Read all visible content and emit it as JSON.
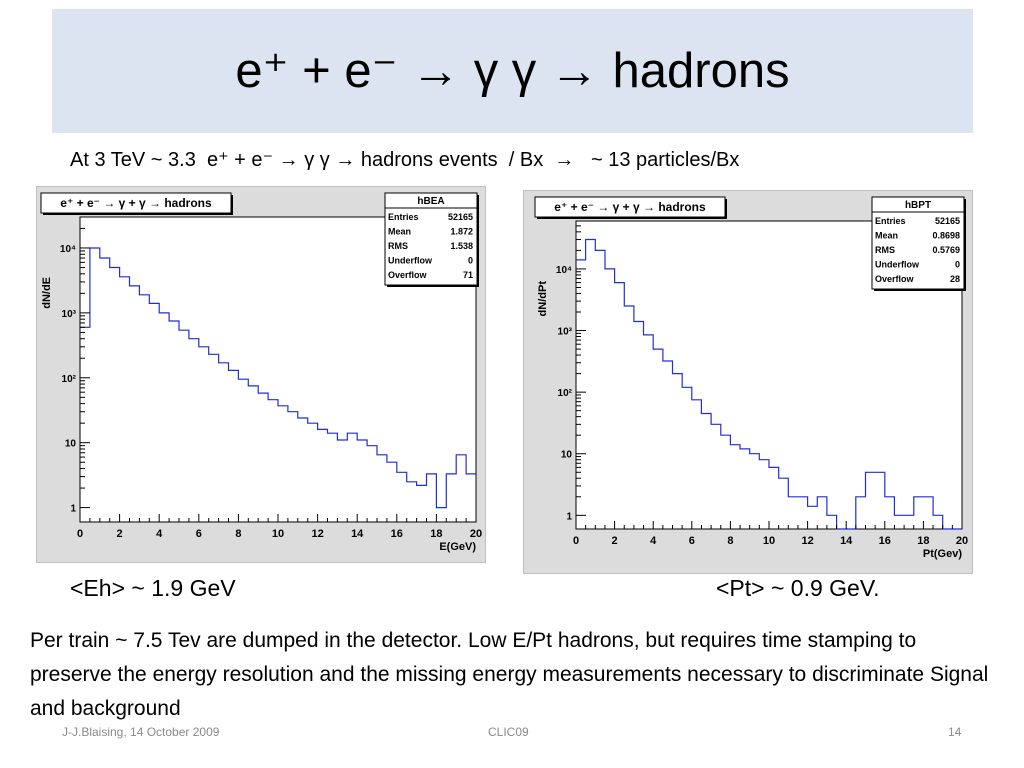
{
  "slide": {
    "title": "e⁺ + e⁻ → γ γ → hadrons",
    "subtitle": "At 3 TeV ~ 3.3  e⁺ + e⁻ → γ γ → hadrons events  / Bx  →   ~ 13 particles/Bx",
    "eh_label": "<Eh> ~ 1.9 GeV",
    "pt_label": "<Pt> ~ 0.9 GeV.",
    "paragraph": "Per train ~ 7.5 Tev  are dumped in the detector. Low E/Pt hadrons, but requires time stamping to preserve the energy resolution and the missing energy measurements necessary to discriminate Signal and background",
    "footer_left": "J-J.Blaising, 14 October 2009",
    "footer_center": "CLIC09",
    "footer_right": "14"
  },
  "chart_data": [
    {
      "type": "histogram",
      "title": "e⁺ + e⁻ → γ + γ → hadrons",
      "xlabel": "E(GeV)",
      "ylabel": "dN/dE",
      "xlim": [
        0,
        20
      ],
      "ylim": [
        0.6,
        30000
      ],
      "yscale": "log",
      "xticks": [
        "0",
        "2",
        "4",
        "6",
        "8",
        "10",
        "12",
        "14",
        "16",
        "18",
        "20"
      ],
      "yticks": [
        {
          "v": 1,
          "t": "1"
        },
        {
          "v": 10,
          "t": "10"
        },
        {
          "v": 100,
          "t": "10²"
        },
        {
          "v": 1000,
          "t": "10³"
        },
        {
          "v": 10000,
          "t": "10⁴"
        }
      ],
      "bin_width": 0.5,
      "values": [
        600,
        10000,
        7000,
        5000,
        3600,
        2600,
        1900,
        1400,
        1000,
        750,
        540,
        400,
        300,
        230,
        170,
        130,
        95,
        75,
        58,
        46,
        37,
        30,
        24,
        20,
        16,
        14,
        11,
        14,
        11,
        9,
        6.5,
        5,
        3.5,
        2.5,
        2.2,
        3.3,
        1,
        3.3,
        6.5,
        3.3,
        5,
        2.5,
        1,
        3.3,
        1,
        2,
        2,
        1,
        2,
        0.6
      ],
      "stats": {
        "name": "hBEA",
        "rows": [
          [
            "Entries",
            "52165"
          ],
          [
            "Mean",
            "1.872"
          ],
          [
            "RMS",
            "1.538"
          ],
          [
            "Underflow",
            "0"
          ],
          [
            "Overflow",
            "71"
          ]
        ]
      }
    },
    {
      "type": "histogram",
      "title": "e⁺ + e⁻ → γ + γ → hadrons",
      "xlabel": "Pt(Gev)",
      "ylabel": "dN/dPt",
      "xlim": [
        0,
        20
      ],
      "ylim": [
        0.6,
        60000
      ],
      "yscale": "log",
      "xticks": [
        "0",
        "2",
        "4",
        "6",
        "8",
        "10",
        "12",
        "14",
        "16",
        "18",
        "20"
      ],
      "yticks": [
        {
          "v": 1,
          "t": "1"
        },
        {
          "v": 10,
          "t": "10"
        },
        {
          "v": 100,
          "t": "10²"
        },
        {
          "v": 1000,
          "t": "10³"
        },
        {
          "v": 10000,
          "t": "10⁴"
        }
      ],
      "bin_width": 0.5,
      "values": [
        14000,
        30000,
        20000,
        10000,
        6000,
        2500,
        1400,
        850,
        500,
        320,
        200,
        120,
        75,
        45,
        30,
        20,
        14,
        12,
        10,
        8,
        6,
        4,
        2,
        2,
        1.4,
        2,
        1,
        0.6,
        0.5,
        2,
        5,
        5,
        2,
        1,
        1,
        2,
        2,
        1,
        0.5,
        0.5,
        0.5,
        1,
        0.5,
        1,
        1,
        2,
        0.5,
        0.5,
        0.5,
        0.5,
        0.5,
        0.5,
        0.5,
        0.5,
        0.5,
        0.5,
        1,
        0.5,
        0.5,
        0.5
      ],
      "stats": {
        "name": "hBPT",
        "rows": [
          [
            "Entries",
            "52165"
          ],
          [
            "Mean",
            "0.8698"
          ],
          [
            "RMS",
            "0.5769"
          ],
          [
            "Underflow",
            "0"
          ],
          [
            "Overflow",
            "28"
          ]
        ]
      }
    }
  ]
}
